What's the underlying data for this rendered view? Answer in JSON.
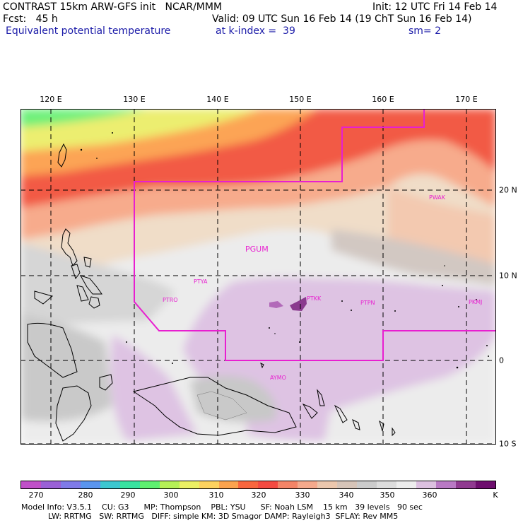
{
  "header": {
    "left1": "CONTRAST 15km ARW-GFS init   NCAR/MMM",
    "init": "Init: 12 UTC Fri 14 Feb 14",
    "left2": "Fcst:   45 h",
    "valid": "Valid: 09 UTC Sun 16 Feb 14 (19 ChT Sun 16 Feb 14)",
    "field": "Equivalent potential temperature",
    "level": "at k-index =  39",
    "smooth": "sm= 2"
  },
  "map": {
    "lon_labels": [
      "120 E",
      "130 E",
      "140 E",
      "150 E",
      "160 E",
      "170 E"
    ],
    "lat_labels": [
      "20 N",
      "10 N",
      "0",
      "10 S"
    ],
    "stations": [
      "PWAK",
      "PGUM",
      "PTYA",
      "PTRO",
      "PTKK",
      "PTPN",
      "PKMJ",
      "AYMO"
    ],
    "region_color": "#e81fd0"
  },
  "colorbar": {
    "colors": [
      "#c050c8",
      "#9a60d6",
      "#7f7ae8",
      "#5a95ee",
      "#3cc7d0",
      "#38e3a0",
      "#5ef070",
      "#b5f057",
      "#ecf063",
      "#fdd25e",
      "#fba34e",
      "#f9663e",
      "#f44a41",
      "#f48467",
      "#f5a98c",
      "#ecc7ad",
      "#d6c4b8",
      "#cbcbcb",
      "#dcdcdc",
      "#ededed",
      "#dcc0e0",
      "#b979c4",
      "#903a90",
      "#6e0e6e"
    ],
    "labels": [
      "270",
      "280",
      "290",
      "300",
      "310",
      "320",
      "330",
      "340",
      "350",
      "360",
      "K"
    ]
  },
  "footer": {
    "line1": "Model Info: V3.5.1    CU: G3      MP: Thompson    PBL: YSU      SF: Noah LSM    15 km   39 levels   90 sec",
    "line2": "LW: RRTMG   SW: RRTMG   DIFF: simple KM: 3D Smagor DAMP: Rayleigh3  SFLAY: Rev MM5"
  }
}
